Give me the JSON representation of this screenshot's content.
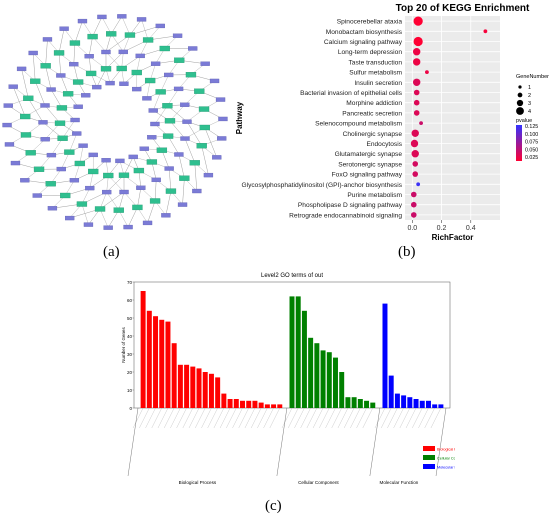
{
  "panel_labels": {
    "a": "(a)",
    "b": "(b)",
    "c": "(c)"
  },
  "colors": {
    "gene_node": "#7b7bd6",
    "pathway_node": "#2fbf8f",
    "edge": "#888888",
    "bp": "#ff0000",
    "cc": "#008000",
    "mf": "#0000ff"
  },
  "chart_data": [
    {
      "id": "network",
      "type": "network",
      "node_types": [
        "gene",
        "pathway"
      ]
    },
    {
      "id": "kegg",
      "type": "scatter",
      "title": "Top 20 of KEGG Enrichment",
      "xlabel": "RichFactor",
      "ylabel": "Pathway",
      "xlim": [
        -0.05,
        0.6
      ],
      "xticks": [
        "0.0",
        "0.2",
        "0.4"
      ],
      "xtick_values": [
        0.0,
        0.2,
        0.4
      ],
      "categories": [
        "Spinocerebellar ataxia",
        "Monobactam biosynthesis",
        "Calcium signaling pathway",
        "Long-term depression",
        "Taste transduction",
        "Sulfur metabolism",
        "Insulin secretion",
        "Bacterial invasion of epithelial cells",
        "Morphine addiction",
        "Pancreatic secretion",
        "Selenocompound metabolism",
        "Cholinergic synapse",
        "Endocytosis",
        "Glutamatergic synapse",
        "Serotonergic synapse",
        "FoxO signaling pathway",
        "Glycosylphosphatidylinositol (GPI)-anchor biosynthesis",
        "Purine metabolism",
        "Phospholipase D signaling pathway",
        "Retrograde endocannabinoid signaling"
      ],
      "rich_factor": [
        0.04,
        0.5,
        0.04,
        0.03,
        0.03,
        0.1,
        0.03,
        0.03,
        0.03,
        0.03,
        0.06,
        0.02,
        0.015,
        0.02,
        0.02,
        0.02,
        0.04,
        0.01,
        0.01,
        0.01
      ],
      "gene_number": [
        4,
        1,
        4,
        3,
        3,
        1,
        3,
        2,
        2,
        2,
        1,
        3,
        3,
        3,
        2,
        2,
        1,
        2,
        2,
        2
      ],
      "pvalue": [
        0.01,
        0.015,
        0.01,
        0.02,
        0.02,
        0.02,
        0.03,
        0.03,
        0.03,
        0.03,
        0.04,
        0.03,
        0.03,
        0.03,
        0.035,
        0.035,
        0.12,
        0.04,
        0.04,
        0.04
      ],
      "legend_size_title": "GeneNumber",
      "legend_size_values": [
        "1",
        "2",
        "3",
        "4"
      ],
      "legend_color_title": "pvalue",
      "legend_color_values": [
        "0.125",
        "0.100",
        "0.075",
        "0.050",
        "0.025"
      ],
      "color_low": "#ff0033",
      "color_high": "#3333ff"
    },
    {
      "id": "go",
      "type": "bar",
      "title": "Level2 GO terms of out",
      "ylabel": "Number of Genes",
      "ylim": [
        0,
        70
      ],
      "yticks": [
        0,
        10,
        20,
        30,
        40,
        50,
        60,
        70
      ],
      "groups": [
        {
          "name": "Biological Process",
          "color": "#ff0000",
          "values": [
            65,
            54,
            51,
            49,
            48,
            36,
            24,
            24,
            23,
            22,
            20,
            19,
            17,
            8,
            5,
            5,
            4,
            4,
            4,
            3,
            2,
            2,
            2
          ]
        },
        {
          "name": "Cellular Component",
          "color": "#008000",
          "values": [
            62,
            62,
            54,
            39,
            36,
            32,
            31,
            28,
            20,
            6,
            6,
            5,
            4,
            3
          ]
        },
        {
          "name": "Molecular Function",
          "color": "#0000ff",
          "values": [
            58,
            18,
            8,
            7,
            6,
            5,
            4,
            4,
            2,
            2
          ]
        }
      ],
      "legend": [
        "Biological Process",
        "Cellular Component",
        "Molecular Function"
      ]
    }
  ]
}
